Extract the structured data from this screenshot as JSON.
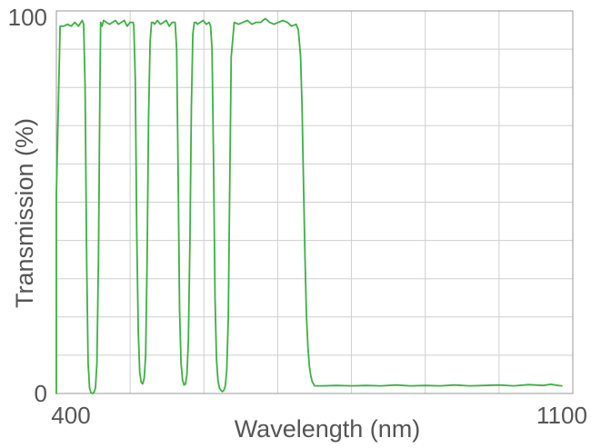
{
  "chart_data": {
    "type": "line",
    "xlabel": "Wavelength (nm)",
    "ylabel": "Transmission (%)",
    "xlim": [
      400,
      1100
    ],
    "ylim": [
      0,
      100
    ],
    "x_tick_labels": [
      {
        "value": 400,
        "label": "400"
      },
      {
        "value": 1100,
        "label": "1100"
      }
    ],
    "y_tick_labels": [
      {
        "value": 0,
        "label": "0"
      },
      {
        "value": 100,
        "label": "100"
      }
    ],
    "x_gridlines": [
      500,
      600,
      700,
      800,
      900,
      1000
    ],
    "y_gridlines": [
      10,
      20,
      30,
      40,
      50,
      60,
      70,
      80,
      90
    ],
    "grid": true,
    "legend": "none",
    "series": [
      {
        "color": "#3cb043",
        "x": [
          375,
          385,
          388,
          390,
          392,
          394,
          396,
          398,
          400,
          405,
          410,
          415,
          420,
          425,
          430,
          435,
          437,
          439,
          441,
          443,
          445,
          447,
          449,
          451,
          453,
          455,
          457,
          459,
          460,
          462,
          464,
          468,
          472,
          476,
          480,
          484,
          488,
          492,
          496,
          500,
          504,
          505,
          507,
          509,
          511,
          513,
          515,
          517,
          519,
          521,
          523,
          525,
          527,
          529,
          531,
          533,
          537,
          541,
          545,
          549,
          553,
          557,
          561,
          563,
          565,
          567,
          569,
          571,
          573,
          575,
          577,
          579,
          581,
          583,
          585,
          587,
          589,
          591,
          595,
          599,
          603,
          607,
          609,
          611,
          613,
          615,
          617,
          619,
          621,
          623,
          625,
          627,
          629,
          631,
          633,
          635,
          637,
          641,
          647,
          653,
          659,
          665,
          671,
          677,
          683,
          689,
          695,
          701,
          707,
          713,
          719,
          725,
          728,
          731,
          733,
          735,
          737,
          739,
          741,
          743,
          745,
          747,
          750,
          755,
          760,
          780,
          800,
          820,
          840,
          860,
          880,
          900,
          920,
          940,
          960,
          980,
          1000,
          1020,
          1040,
          1060,
          1070,
          1080,
          1085
        ],
        "y": [
          0,
          0,
          0.2,
          0.5,
          2,
          10,
          30,
          48,
          52,
          96,
          96,
          96.5,
          96,
          97,
          96,
          97.5,
          96.5,
          80,
          35,
          8,
          1.5,
          0.2,
          0,
          0.3,
          1.5,
          8,
          35,
          80,
          97,
          96,
          97.5,
          97,
          96.5,
          97,
          97.5,
          96.5,
          97,
          97.5,
          96,
          97,
          97,
          96,
          82,
          42,
          16,
          5.5,
          3,
          2.5,
          4,
          10,
          35,
          72,
          92,
          97,
          97,
          96.5,
          97.5,
          96.5,
          97,
          97.5,
          96,
          97,
          97,
          90,
          58,
          22,
          8,
          3.5,
          2.2,
          2.5,
          5,
          14,
          40,
          75,
          94,
          97,
          97,
          96.5,
          97,
          97.5,
          96.5,
          97,
          96,
          90,
          62,
          25,
          9,
          3.5,
          1.5,
          0.8,
          0.5,
          0.8,
          2,
          6,
          20,
          55,
          88,
          97,
          96.5,
          97,
          97.5,
          96.5,
          97,
          97,
          98,
          97,
          96.5,
          97,
          97.5,
          97,
          96,
          96.5,
          95,
          88,
          75,
          55,
          35,
          20,
          12,
          7,
          4.5,
          3,
          2,
          2,
          2,
          2.1,
          2,
          2.1,
          2,
          2.2,
          2,
          2.1,
          2,
          2.2,
          2,
          2.1,
          2.2,
          2,
          2.3,
          2.1,
          2.4,
          2.1,
          2
        ]
      }
    ]
  }
}
